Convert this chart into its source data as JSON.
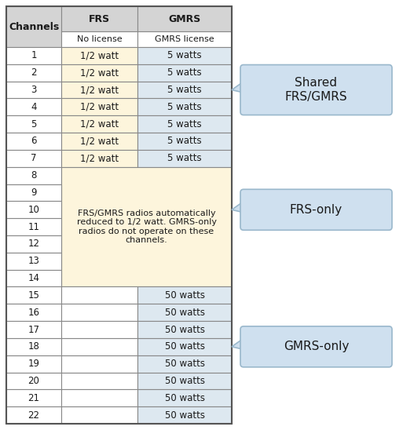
{
  "channels": [
    "1",
    "2",
    "3",
    "4",
    "5",
    "6",
    "7",
    "8",
    "9",
    "10",
    "11",
    "12",
    "13",
    "14",
    "15",
    "16",
    "17",
    "18",
    "19",
    "20",
    "21",
    "22"
  ],
  "frs_col": [
    "1/2 watt",
    "1/2 watt",
    "1/2 watt",
    "1/2 watt",
    "1/2 watt",
    "1/2 watt",
    "1/2 watt",
    "",
    "",
    "",
    "",
    "",
    "",
    "",
    "",
    "",
    "",
    "",
    "",
    "",
    "",
    ""
  ],
  "gmrs_col": [
    "5 watts",
    "5 watts",
    "5 watts",
    "5 watts",
    "5 watts",
    "5 watts",
    "5 watts",
    "",
    "",
    "",
    "",
    "",
    "",
    "",
    "50 watts",
    "50 watts",
    "50 watts",
    "50 watts",
    "50 watts",
    "50 watts",
    "50 watts",
    "50 watts"
  ],
  "shared_rows": [
    0,
    1,
    2,
    3,
    4,
    5,
    6
  ],
  "frs_only_rows": [
    7,
    8,
    9,
    10,
    11,
    12,
    13
  ],
  "gmrs_only_rows": [
    14,
    15,
    16,
    17,
    18,
    19,
    20,
    21
  ],
  "frs_only_note": "FRS/GMRS radios automatically\nreduced to 1/2 watt. GMRS-only\nradios do not operate on these\nchannels.",
  "header_bg": "#d4d4d4",
  "shared_frs_bg": "#fdf5dc",
  "shared_gmrs_bg": "#dde8f0",
  "frs_only_bg": "#fdf5dc",
  "gmrs_only_bg": "#dde8f0",
  "white": "#ffffff",
  "callout_bg": "#cfe0ef",
  "callout_border": "#9ab8cc",
  "edge_color": "#888888",
  "label_shared": "Shared\nFRS/GMRS",
  "label_frs": "FRS-only",
  "label_gmrs": "GMRS-only",
  "fig_width": 5.13,
  "fig_height": 5.48,
  "dpi": 100
}
